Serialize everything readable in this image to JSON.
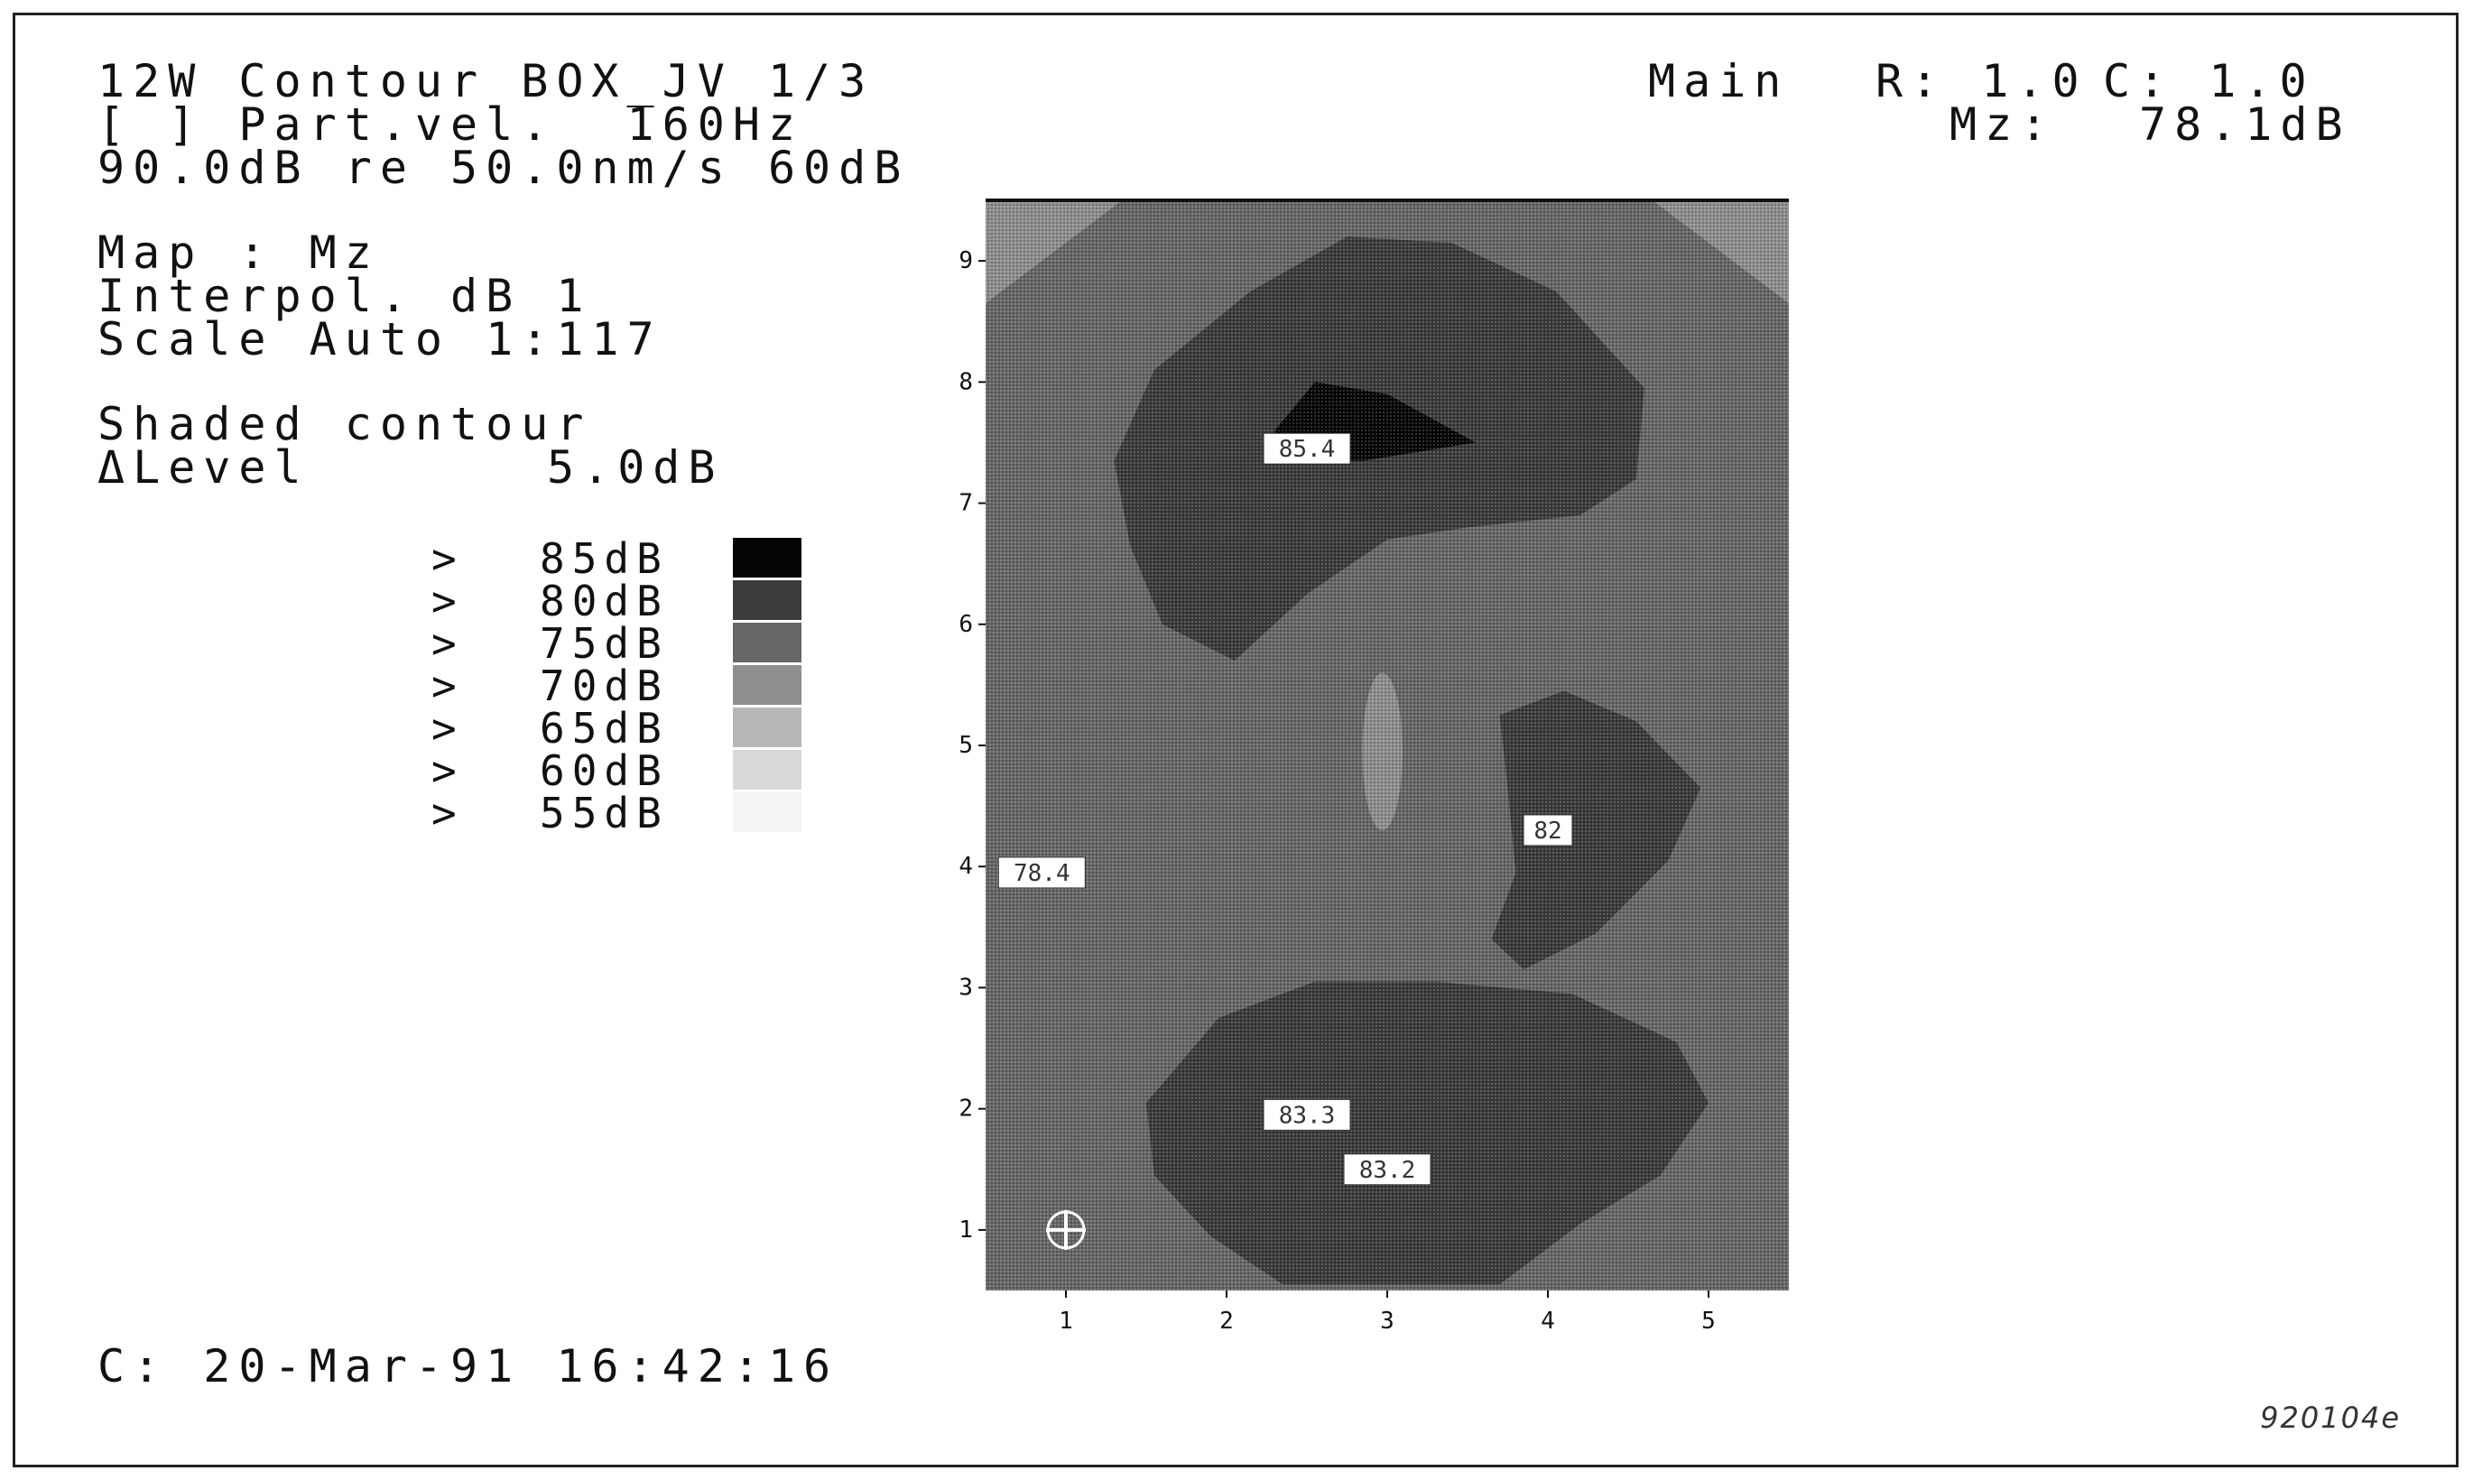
{
  "header": {
    "line1": "12W Contour BOX_JV 1/3",
    "line2": "[ ] Part.vel.  160Hz",
    "line3": "90.0dB re 50.0nm/s 60dB",
    "main_label": "Main",
    "r_label": "R: 1.0",
    "c_label": "C: 1.0",
    "mz_label": "Mz:",
    "mz_value": "78.1dB"
  },
  "info": {
    "map": "Map : Mz",
    "interpol": "Interpol. dB 1",
    "scale": "Scale Auto 1:117",
    "shaded": "Shaded contour",
    "level_label": "ΔLevel",
    "level_value": "5.0dB"
  },
  "footer": {
    "timestamp": "C: 20-Mar-91 16:42:16",
    "stamp": "920104e"
  },
  "legend": [
    {
      "marker": ">",
      "label": "85dB",
      "color": "#050505"
    },
    {
      "marker": ">",
      "label": "80dB",
      "color": "#3b3b3b"
    },
    {
      "marker": ">",
      "label": "75dB",
      "color": "#666666"
    },
    {
      "marker": ">",
      "label": "70dB",
      "color": "#8e8e8e"
    },
    {
      "marker": ">",
      "label": "65dB",
      "color": "#b7b7b7"
    },
    {
      "marker": ">",
      "label": "60dB",
      "color": "#d9d9d9"
    },
    {
      "marker": ">",
      "label": "55dB",
      "color": "#f4f4f4"
    }
  ],
  "chart_data": {
    "type": "heatmap",
    "title": "",
    "xlabel": "",
    "ylabel": "",
    "x_ticks": [
      "1",
      "2",
      "3",
      "4",
      "5"
    ],
    "y_ticks": [
      "1",
      "2",
      "3",
      "4",
      "5",
      "6",
      "7",
      "8",
      "9"
    ],
    "xlim": [
      0.5,
      5.5
    ],
    "ylim": [
      0.5,
      9.5
    ],
    "levels_db": [
      55,
      60,
      65,
      70,
      75,
      80,
      85
    ],
    "annotations": [
      {
        "label": "85.4",
        "x": 2.5,
        "y": 7.45
      },
      {
        "label": "82",
        "x": 4.0,
        "y": 4.3
      },
      {
        "label": "78.4",
        "x": 0.85,
        "y": 3.95
      },
      {
        "label": "83.3",
        "x": 2.5,
        "y": 1.95
      },
      {
        "label": "83.2",
        "x": 3.0,
        "y": 1.5
      }
    ],
    "regions": [
      {
        "level_db": 75,
        "center": [
          3.0,
          5.0
        ],
        "extent": "full map"
      },
      {
        "level_db": 70,
        "center": [
          0.7,
          9.2
        ],
        "extent": "upper-left corner"
      },
      {
        "level_db": 70,
        "center": [
          5.3,
          9.2
        ],
        "extent": "upper-right corner"
      },
      {
        "level_db": 80,
        "center": [
          2.9,
          7.5
        ],
        "extent": "upper lobe x 1.5-4.6, y 5.7-9.2"
      },
      {
        "level_db": 85,
        "center": [
          2.9,
          7.5
        ],
        "extent": "peak wedge near 85.4"
      },
      {
        "level_db": 80,
        "center": [
          4.1,
          4.5
        ],
        "extent": "right lobe x 3.6-4.9, y 3.2-5.4"
      },
      {
        "level_db": 80,
        "center": [
          3.0,
          1.9
        ],
        "extent": "lower lobe x 1.5-5.0, y 0.5-3.0"
      },
      {
        "level_db": 70,
        "center": [
          2.97,
          5.0
        ],
        "extent": "small ellipse x 2.85-3.1, y 4.3-5.6"
      }
    ],
    "marker": {
      "symbol": "cursor-cross",
      "x": 1,
      "y": 1
    }
  }
}
